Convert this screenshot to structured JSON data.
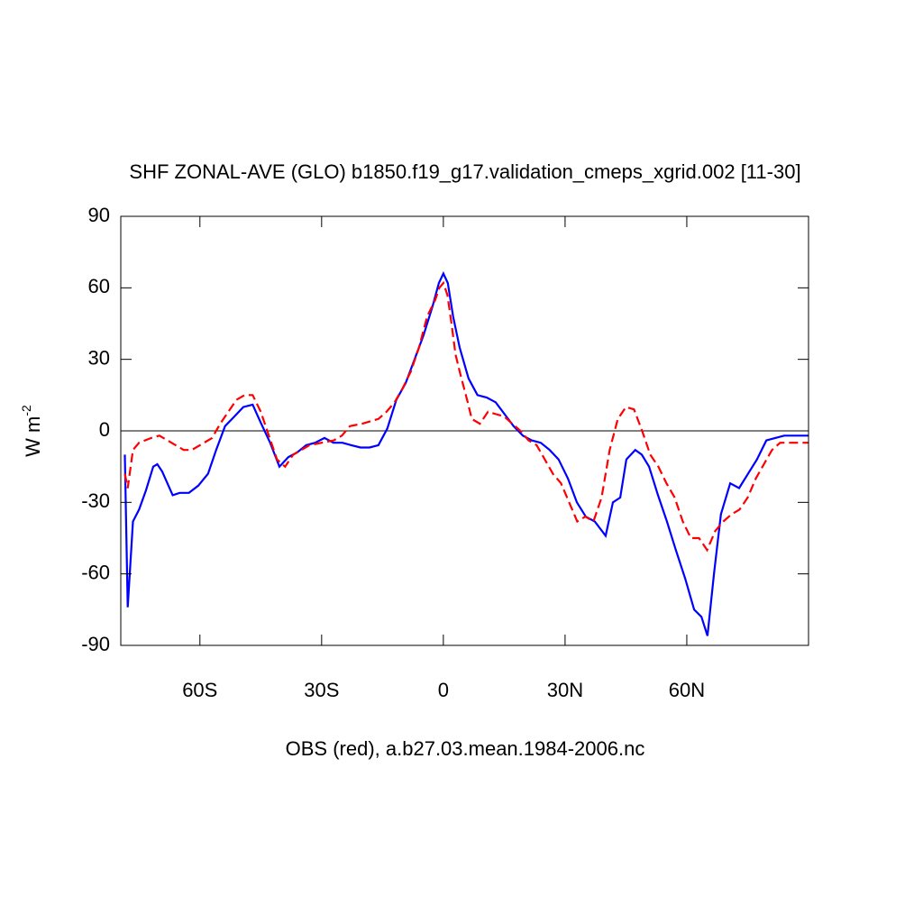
{
  "chart_data": {
    "type": "line",
    "title": "SHF ZONAL-AVE (GLO) b1850.f19_g17.validation_cmeps_xgrid.002 [11-30]",
    "xlabel": "OBS (red), a.b27.03.mean.1984-2006.nc",
    "ylabel": {
      "text": "W m",
      "superscript": "-2"
    },
    "xlim": [
      -79.5,
      90
    ],
    "ylim": [
      -90,
      90
    ],
    "xticks": [
      {
        "value": -60,
        "label": "60S"
      },
      {
        "value": -30,
        "label": "30S"
      },
      0,
      {
        "value": 30,
        "label": "30N"
      },
      {
        "value": 60,
        "label": "60N"
      }
    ],
    "yticks": [
      -90,
      -60,
      -30,
      0,
      30,
      60,
      90
    ],
    "reference_line": 0,
    "series": [
      {
        "name": "b1850.f19_g17.validation_cmeps_xgrid.002",
        "color": "#0000ff",
        "dash": false,
        "x": [
          -78.5,
          -77.8,
          -76.5,
          -75,
          -73.3,
          -71.5,
          -70.5,
          -69.3,
          -66.7,
          -65,
          -62.7,
          -60.4,
          -58,
          -56,
          -53.8,
          -51.5,
          -49.3,
          -47,
          -44.9,
          -42.7,
          -40.4,
          -38.2,
          -36,
          -33.8,
          -31.6,
          -29.3,
          -27.1,
          -24.9,
          -22.7,
          -20.4,
          -18.2,
          -16,
          -13.8,
          -11.6,
          -9.3,
          -7.1,
          -4.9,
          -2.7,
          -1.1,
          0,
          1.1,
          2.4,
          4,
          6.2,
          8.4,
          10.7,
          12.9,
          15.1,
          17.3,
          19.6,
          21.8,
          24,
          26.2,
          28.4,
          30.7,
          32.9,
          35.1,
          37.3,
          40,
          41.8,
          43.6,
          45.1,
          47.3,
          48.9,
          50.7,
          52.9,
          55.1,
          57.3,
          59.6,
          61.8,
          63.6,
          65.1,
          66.7,
          68.4,
          70.7,
          72.9,
          75.1,
          77.3,
          79.6,
          81.8,
          84,
          90
        ],
        "values": [
          -10,
          -74,
          -38,
          -33,
          -25,
          -15,
          -14,
          -17,
          -27,
          -26,
          -26,
          -23,
          -18,
          -8,
          2,
          6,
          10,
          11,
          3,
          -5,
          -15,
          -11,
          -9,
          -6,
          -5,
          -3,
          -5,
          -5,
          -6,
          -7,
          -7,
          -6,
          1,
          13,
          20,
          30,
          40,
          52,
          62,
          66,
          62,
          48,
          35,
          22,
          15,
          14,
          12,
          7,
          2,
          -2,
          -4,
          -5,
          -8,
          -12,
          -20,
          -30,
          -36,
          -38,
          -44,
          -30,
          -28,
          -12,
          -8,
          -10,
          -15,
          -27,
          -38,
          -50,
          -62,
          -75,
          -78,
          -86,
          -60,
          -35,
          -22,
          -24,
          -18,
          -12,
          -4,
          -3,
          -2,
          -2
        ]
      },
      {
        "name": "OBS",
        "color": "#ff0000",
        "dash": true,
        "x": [
          -78.5,
          -77.8,
          -76.5,
          -75,
          -72,
          -70,
          -67,
          -64,
          -62,
          -60,
          -57,
          -55,
          -53,
          -51,
          -49,
          -47,
          -45,
          -43,
          -41,
          -39,
          -37,
          -35,
          -33,
          -30,
          -27,
          -25,
          -23,
          -20,
          -18,
          -16,
          -14,
          -12,
          -10,
          -8,
          -6,
          -4,
          -2,
          -1,
          0,
          1,
          2,
          3,
          4,
          6,
          7,
          9,
          11,
          13,
          15,
          17,
          19,
          21,
          23,
          25,
          27,
          29,
          31,
          33,
          35,
          37,
          39,
          41,
          43,
          45,
          47,
          49,
          51,
          53,
          55,
          57,
          59,
          61,
          63,
          65,
          67,
          69,
          71,
          73,
          75,
          77,
          79,
          81,
          83,
          90
        ],
        "values": [
          -18,
          -24,
          -8,
          -5,
          -3,
          -2,
          -5,
          -8,
          -8,
          -6,
          -3,
          3,
          8,
          13,
          15,
          15,
          8,
          -2,
          -12,
          -15,
          -10,
          -8,
          -6,
          -5,
          -4,
          -2,
          2,
          3,
          4,
          5,
          8,
          12,
          18,
          25,
          35,
          48,
          55,
          60,
          62,
          57,
          45,
          32,
          25,
          12,
          5,
          3,
          8,
          7,
          6,
          3,
          0,
          -4,
          -6,
          -12,
          -18,
          -22,
          -30,
          -38,
          -36,
          -38,
          -28,
          -8,
          5,
          10,
          9,
          0,
          -10,
          -15,
          -22,
          -28,
          -38,
          -45,
          -45,
          -50,
          -42,
          -38,
          -35,
          -33,
          -28,
          -20,
          -14,
          -8,
          -5,
          -5
        ]
      }
    ]
  }
}
